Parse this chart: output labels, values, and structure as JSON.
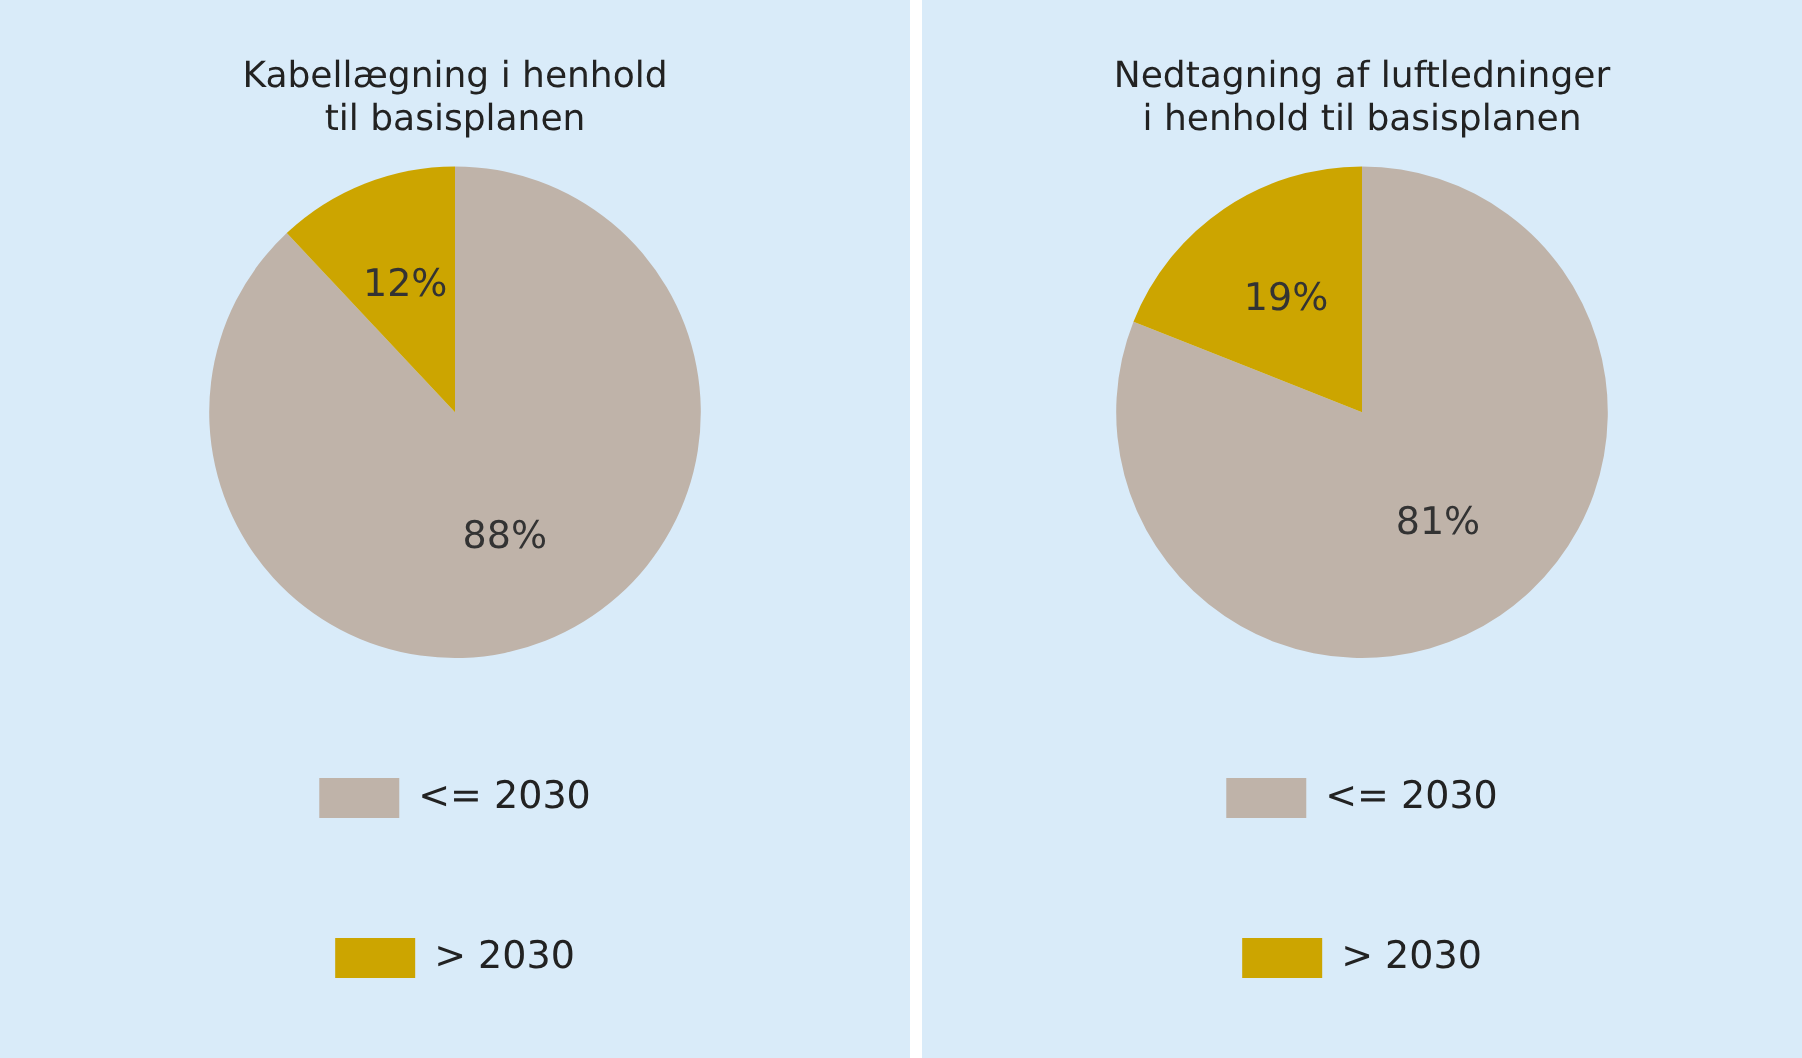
{
  "chart_data": [
    {
      "type": "pie",
      "title": "Kabellægning i henhold\ntil basisplanen",
      "categories": [
        "<= 2030",
        "> 2030"
      ],
      "values": [
        88,
        12
      ],
      "colors": [
        "#bfb3a9",
        "#cca500"
      ],
      "value_labels": [
        "88%",
        "12%"
      ],
      "legend": "bottom"
    },
    {
      "type": "pie",
      "title": "Nedtagning af luftledninger\ni henhold til basisplanen",
      "categories": [
        "<= 2030",
        "> 2030"
      ],
      "values": [
        81,
        19
      ],
      "colors": [
        "#bfb3a9",
        "#cca500"
      ],
      "value_labels": [
        "81%",
        "19%"
      ],
      "legend": "bottom"
    }
  ]
}
